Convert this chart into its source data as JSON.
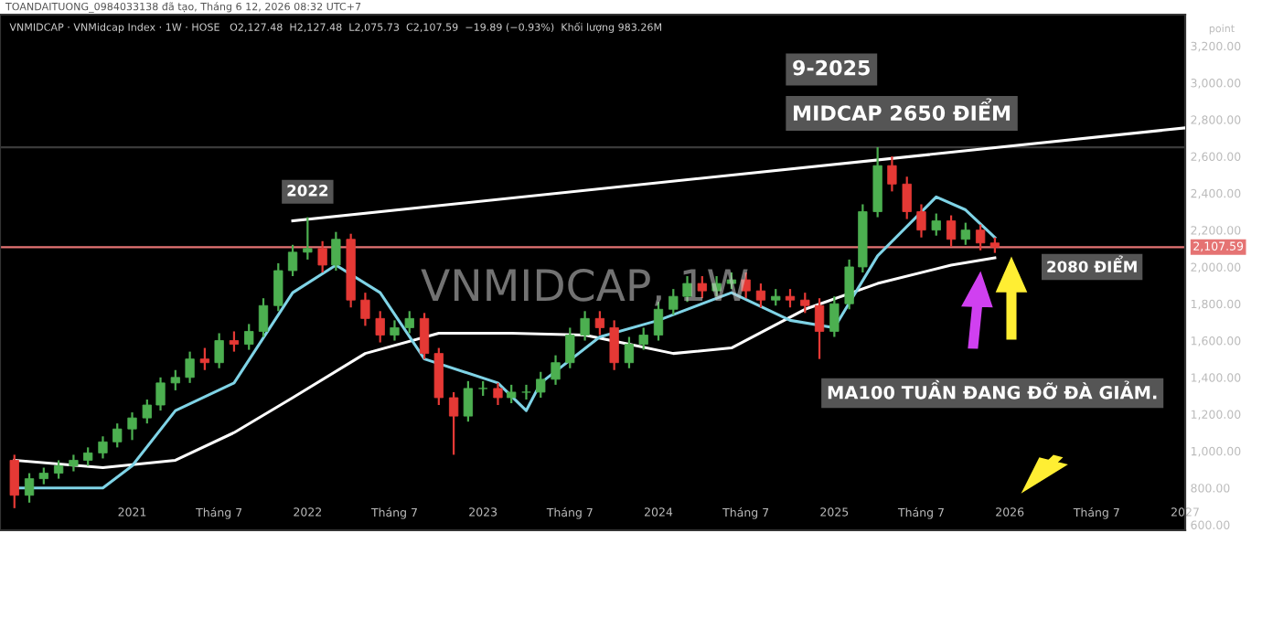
{
  "chart_data": {
    "type": "candlestick",
    "title": "TOANDAITUONG_0984033138 đã tạo, Tháng 6 12, 2026 08:32 UTC+7",
    "subtitle": "VNMIDCAP · VNMidcap Index · 1W · HOSE   O2,127.48  H2,127.48  L2,075.73  C2,107.59  −19.89 (−0.93%)  Khối lượng 983.26M",
    "x": [
      "2020-05",
      "2020-06",
      "2020-07",
      "2020-08",
      "2020-09",
      "2020-10",
      "2020-11",
      "2020-12",
      "2021-01",
      "2021-02",
      "2021-03",
      "2021-04",
      "2021-05",
      "2021-06",
      "2021-07",
      "2021-08",
      "2021-09",
      "2021-10",
      "2021-11",
      "2021-12",
      "2022-01",
      "2022-02",
      "2022-03",
      "2022-04",
      "2022-05",
      "2022-06",
      "2022-07",
      "2022-08",
      "2022-09",
      "2022-10",
      "2022-11",
      "2022-12",
      "2023-01",
      "2023-02",
      "2023-03",
      "2023-04",
      "2023-05",
      "2023-06",
      "2023-07",
      "2023-08",
      "2023-09",
      "2023-10",
      "2023-11",
      "2023-12",
      "2024-01",
      "2024-02",
      "2024-03",
      "2024-04",
      "2024-05",
      "2024-06",
      "2024-07",
      "2024-08",
      "2024-09",
      "2024-10",
      "2024-11",
      "2024-12",
      "2025-01",
      "2025-02",
      "2025-03",
      "2025-04",
      "2025-05",
      "2025-06",
      "2025-07",
      "2025-08",
      "2025-09",
      "2025-10",
      "2025-11",
      "2025-12"
    ],
    "ohlc": [
      [
        950,
        980,
        690,
        760
      ],
      [
        760,
        880,
        720,
        850
      ],
      [
        850,
        910,
        820,
        880
      ],
      [
        880,
        950,
        850,
        920
      ],
      [
        920,
        980,
        890,
        950
      ],
      [
        950,
        1020,
        920,
        990
      ],
      [
        990,
        1080,
        960,
        1050
      ],
      [
        1050,
        1150,
        1020,
        1120
      ],
      [
        1120,
        1210,
        1060,
        1180
      ],
      [
        1180,
        1280,
        1150,
        1250
      ],
      [
        1250,
        1400,
        1220,
        1370
      ],
      [
        1370,
        1440,
        1330,
        1400
      ],
      [
        1400,
        1540,
        1370,
        1500
      ],
      [
        1500,
        1560,
        1440,
        1480
      ],
      [
        1480,
        1640,
        1450,
        1600
      ],
      [
        1600,
        1650,
        1540,
        1580
      ],
      [
        1580,
        1690,
        1550,
        1650
      ],
      [
        1650,
        1830,
        1620,
        1790
      ],
      [
        1790,
        2020,
        1760,
        1980
      ],
      [
        1980,
        2120,
        1950,
        2080
      ],
      [
        2080,
        2270,
        2040,
        2100
      ],
      [
        2100,
        2140,
        1970,
        2010
      ],
      [
        2010,
        2190,
        1980,
        2150
      ],
      [
        2150,
        2180,
        1780,
        1820
      ],
      [
        1820,
        1860,
        1680,
        1720
      ],
      [
        1720,
        1760,
        1590,
        1630
      ],
      [
        1630,
        1710,
        1600,
        1670
      ],
      [
        1670,
        1760,
        1640,
        1720
      ],
      [
        1720,
        1750,
        1500,
        1530
      ],
      [
        1530,
        1560,
        1250,
        1290
      ],
      [
        1290,
        1320,
        980,
        1190
      ],
      [
        1190,
        1380,
        1160,
        1340
      ],
      [
        1340,
        1380,
        1300,
        1340
      ],
      [
        1340,
        1370,
        1250,
        1290
      ],
      [
        1290,
        1360,
        1260,
        1320
      ],
      [
        1320,
        1360,
        1280,
        1320
      ],
      [
        1320,
        1430,
        1290,
        1390
      ],
      [
        1390,
        1520,
        1360,
        1480
      ],
      [
        1480,
        1670,
        1450,
        1630
      ],
      [
        1630,
        1760,
        1600,
        1720
      ],
      [
        1720,
        1760,
        1630,
        1670
      ],
      [
        1670,
        1710,
        1440,
        1480
      ],
      [
        1480,
        1620,
        1450,
        1580
      ],
      [
        1580,
        1670,
        1550,
        1630
      ],
      [
        1630,
        1810,
        1600,
        1770
      ],
      [
        1770,
        1880,
        1740,
        1840
      ],
      [
        1840,
        1950,
        1810,
        1910
      ],
      [
        1910,
        1950,
        1830,
        1870
      ],
      [
        1870,
        1950,
        1840,
        1910
      ],
      [
        1910,
        1970,
        1880,
        1930
      ],
      [
        1930,
        1970,
        1830,
        1870
      ],
      [
        1870,
        1910,
        1780,
        1820
      ],
      [
        1820,
        1880,
        1790,
        1840
      ],
      [
        1840,
        1880,
        1780,
        1820
      ],
      [
        1820,
        1860,
        1750,
        1790
      ],
      [
        1790,
        1830,
        1500,
        1650
      ],
      [
        1650,
        1840,
        1620,
        1800
      ],
      [
        1800,
        2040,
        1770,
        2000
      ],
      [
        2000,
        2340,
        1970,
        2300
      ],
      [
        2300,
        2650,
        2270,
        2550
      ],
      [
        2550,
        2600,
        2410,
        2450
      ],
      [
        2450,
        2490,
        2260,
        2300
      ],
      [
        2300,
        2340,
        2160,
        2200
      ],
      [
        2200,
        2290,
        2170,
        2250
      ],
      [
        2250,
        2280,
        2110,
        2150
      ],
      [
        2150,
        2240,
        2120,
        2200
      ],
      [
        2200,
        2230,
        2090,
        2130
      ],
      [
        2130,
        2160,
        2076,
        2108
      ]
    ],
    "colors": [
      "#e53935",
      "#4caf50",
      "#4caf50",
      "#4caf50",
      "#4caf50",
      "#4caf50",
      "#4caf50",
      "#4caf50",
      "#4caf50",
      "#4caf50",
      "#4caf50",
      "#4caf50",
      "#4caf50",
      "#e53935",
      "#4caf50",
      "#e53935",
      "#4caf50",
      "#4caf50",
      "#4caf50",
      "#4caf50",
      "#4caf50",
      "#e53935",
      "#4caf50",
      "#e53935",
      "#e53935",
      "#e53935",
      "#4caf50",
      "#4caf50",
      "#e53935",
      "#e53935",
      "#e53935",
      "#4caf50",
      "#4caf50",
      "#e53935",
      "#4caf50",
      "#4caf50",
      "#4caf50",
      "#4caf50",
      "#4caf50",
      "#4caf50",
      "#e53935",
      "#e53935",
      "#4caf50",
      "#4caf50",
      "#4caf50",
      "#4caf50",
      "#4caf50",
      "#e53935",
      "#4caf50",
      "#4caf50",
      "#e53935",
      "#e53935",
      "#4caf50",
      "#e53935",
      "#e53935",
      "#e53935",
      "#4caf50",
      "#4caf50",
      "#4caf50",
      "#4caf50",
      "#e53935",
      "#e53935",
      "#e53935",
      "#4caf50",
      "#e53935",
      "#4caf50",
      "#e53935",
      "#e53935"
    ],
    "series": [
      {
        "type": "line",
        "color": "#ffffff",
        "x": [
          "2020-05",
          "2020-11",
          "2021-04",
          "2021-08",
          "2021-12",
          "2022-05",
          "2022-10",
          "2023-03",
          "2023-08",
          "2023-11",
          "2024-02",
          "2024-06",
          "2024-11",
          "2025-04",
          "2025-09",
          "2025-12"
        ],
        "values": [
          950,
          910,
          950,
          1100,
          1290,
          1530,
          1640,
          1640,
          1630,
          1580,
          1530,
          1560,
          1770,
          1910,
          2010,
          2050
        ]
      },
      {
        "type": "line",
        "color": "#7fd3e6",
        "x": [
          "2020-05",
          "2020-11",
          "2021-01",
          "2021-04",
          "2021-08",
          "2021-12",
          "2022-03",
          "2022-06",
          "2022-09",
          "2023-02",
          "2023-04",
          "2023-05",
          "2023-09",
          "2024-01",
          "2024-06",
          "2024-10",
          "2025-01",
          "2025-04",
          "2025-08",
          "2025-10",
          "2025-12"
        ],
        "values": [
          800,
          800,
          920,
          1220,
          1370,
          1860,
          2010,
          1860,
          1500,
          1370,
          1220,
          1370,
          1620,
          1710,
          1860,
          1710,
          1670,
          2060,
          2380,
          2310,
          2160
        ]
      },
      {
        "type": "line",
        "color": "#ffffff",
        "x": [
          "2021-12",
          "2027-01"
        ],
        "values": [
          2250,
          2755
        ]
      }
    ],
    "ref_lines": [
      {
        "axis": "y",
        "value": 2650,
        "color": "#3a3a3a"
      },
      {
        "axis": "y",
        "value": 2107.59,
        "label": "2,107.59",
        "color": "#e57373"
      }
    ],
    "annotations": [
      {
        "text": "2022",
        "x": "2022-01",
        "y": 2270
      },
      "9-2025",
      "MIDCAP 2650 ĐIỂM",
      "2080 ĐIỂM",
      "MA100 TUẦN ĐANG ĐỠ ĐÀ GIẢM.",
      "VNMIDCAP, 1W",
      "point"
    ],
    "xlim": [
      "2020-04",
      "2027-01"
    ],
    "xticks": [
      {
        "value": "2021-01",
        "label": "2021"
      },
      {
        "value": "2021-07",
        "label": "Tháng 7"
      },
      {
        "value": "2022-01",
        "label": "2022"
      },
      {
        "value": "2022-07",
        "label": "Tháng 7"
      },
      {
        "value": "2023-01",
        "label": "2023"
      },
      {
        "value": "2023-07",
        "label": "Tháng 7"
      },
      {
        "value": "2024-01",
        "label": "2024"
      },
      {
        "value": "2024-07",
        "label": "Tháng 7"
      },
      {
        "value": "2025-01",
        "label": "2025"
      },
      {
        "value": "2025-07",
        "label": "Tháng 7"
      },
      {
        "value": "2026-01",
        "label": "2026"
      },
      {
        "value": "2026-07",
        "label": "Tháng 7"
      },
      {
        "value": "2027-01",
        "label": "2027"
      }
    ],
    "ylim": [
      570,
      3370
    ],
    "yticks": [
      {
        "value": 600,
        "label": "600.00"
      },
      {
        "value": 800,
        "label": "800.00"
      },
      {
        "value": 1000,
        "label": "1,000.00"
      },
      {
        "value": 1200,
        "label": "1,200.00"
      },
      {
        "value": 1400,
        "label": "1,400.00"
      },
      {
        "value": 1600,
        "label": "1,600.00"
      },
      {
        "value": 1800,
        "label": "1,800.00"
      },
      {
        "value": 2000,
        "label": "2,000.00"
      },
      {
        "value": 2200,
        "label": "2,200.00"
      },
      {
        "value": 2400,
        "label": "2,400.00"
      },
      {
        "value": 2600,
        "label": "2,600.00"
      },
      {
        "value": 2800,
        "label": "2,800.00"
      },
      {
        "value": 3000,
        "label": "3,000.00"
      },
      {
        "value": 3200,
        "label": "3,200.00"
      }
    ],
    "grid": false
  }
}
